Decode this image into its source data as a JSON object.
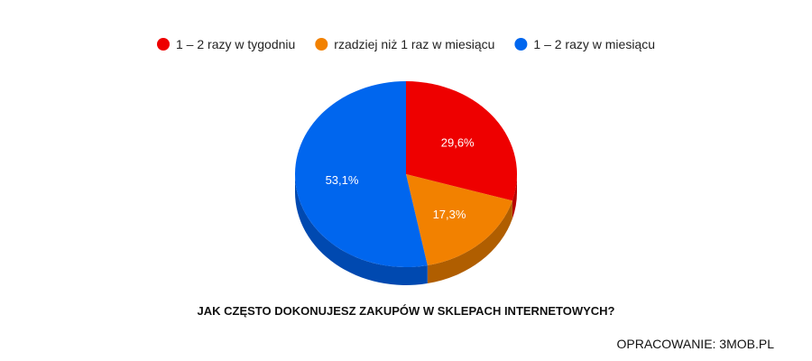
{
  "chart_data": {
    "type": "pie",
    "title": "JAK CZĘSTO DOKONUJESZ ZAKUPÓW W SKLEPACH INTERNETOWYCH?",
    "legend_position": "top",
    "style": "3d",
    "slices": [
      {
        "label": "1 – 2 razy w tygodniu",
        "value": 29.6,
        "display": "29,6%",
        "color": "#ee0000",
        "side_color": "#b80000"
      },
      {
        "label": "rzadziej niż 1 raz w miesiącu",
        "value": 17.3,
        "display": "17,3%",
        "color": "#f28100",
        "side_color": "#b05e00"
      },
      {
        "label": "1 – 2 razy w miesiącu",
        "value": 53.1,
        "display": "53,1%",
        "color": "#0066ee",
        "side_color": "#0049b0"
      }
    ]
  },
  "footer": {
    "source": "OPRACOWANIE: 3MOB.PL"
  }
}
